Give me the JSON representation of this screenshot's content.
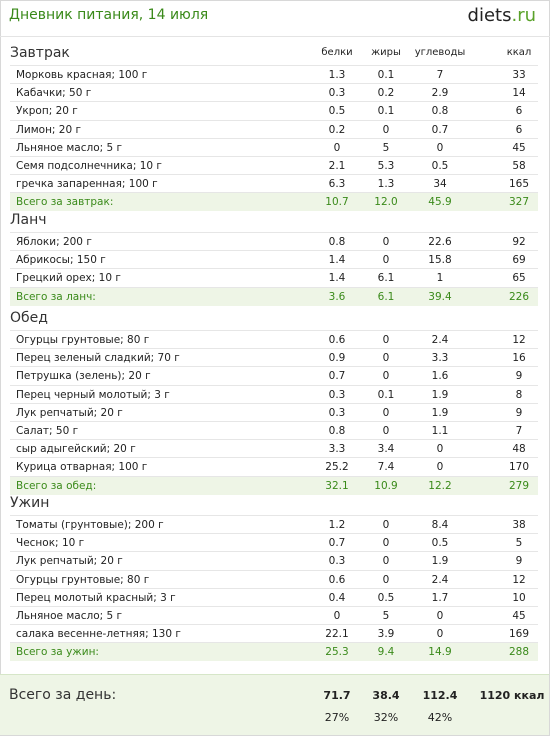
{
  "header": {
    "title": "Дневник питания, 14 июля",
    "logo_main": "diets",
    "logo_tld": ".ru"
  },
  "columns": {
    "protein": "белки",
    "fat": "жиры",
    "carbs": "углеводы",
    "kcal": "ккал"
  },
  "meals": [
    {
      "title": "Завтрак",
      "items": [
        [
          "Морковь красная; 100 г",
          "1.3",
          "0.1",
          "7",
          "33"
        ],
        [
          "Кабачки; 50 г",
          "0.3",
          "0.2",
          "2.9",
          "14"
        ],
        [
          "Укроп; 20 г",
          "0.5",
          "0.1",
          "0.8",
          "6"
        ],
        [
          "Лимон; 20 г",
          "0.2",
          "0",
          "0.7",
          "6"
        ],
        [
          "Льняное масло; 5 г",
          "0",
          "5",
          "0",
          "45"
        ],
        [
          "Семя подсолнечника; 10 г",
          "2.1",
          "5.3",
          "0.5",
          "58"
        ],
        [
          "гречка запаренная; 100 г",
          "6.3",
          "1.3",
          "34",
          "165"
        ]
      ],
      "total": [
        "Всего за завтрак:",
        "10.7",
        "12.0",
        "45.9",
        "327"
      ]
    },
    {
      "title": "Ланч",
      "items": [
        [
          "Яблоки; 200 г",
          "0.8",
          "0",
          "22.6",
          "92"
        ],
        [
          "Абрикосы; 150 г",
          "1.4",
          "0",
          "15.8",
          "69"
        ],
        [
          "Грецкий орех; 10 г",
          "1.4",
          "6.1",
          "1",
          "65"
        ]
      ],
      "total": [
        "Всего за ланч:",
        "3.6",
        "6.1",
        "39.4",
        "226"
      ]
    },
    {
      "title": "Обед",
      "items": [
        [
          "Огурцы грунтовые; 80 г",
          "0.6",
          "0",
          "2.4",
          "12"
        ],
        [
          "Перец зеленый сладкий; 70 г",
          "0.9",
          "0",
          "3.3",
          "16"
        ],
        [
          "Петрушка (зелень); 20 г",
          "0.7",
          "0",
          "1.6",
          "9"
        ],
        [
          "Перец черный молотый; 3 г",
          "0.3",
          "0.1",
          "1.9",
          "8"
        ],
        [
          "Лук репчатый; 20 г",
          "0.3",
          "0",
          "1.9",
          "9"
        ],
        [
          "Салат; 50 г",
          "0.8",
          "0",
          "1.1",
          "7"
        ],
        [
          "сыр адыгейский; 20 г",
          "3.3",
          "3.4",
          "0",
          "48"
        ],
        [
          "Курица отварная; 100 г",
          "25.2",
          "7.4",
          "0",
          "170"
        ]
      ],
      "total": [
        "Всего за обед:",
        "32.1",
        "10.9",
        "12.2",
        "279"
      ]
    },
    {
      "title": "Ужин",
      "items": [
        [
          "Томаты (грунтовые); 200 г",
          "1.2",
          "0",
          "8.4",
          "38"
        ],
        [
          "Чеснок; 10 г",
          "0.7",
          "0",
          "0.5",
          "5"
        ],
        [
          "Лук репчатый; 20 г",
          "0.3",
          "0",
          "1.9",
          "9"
        ],
        [
          "Огурцы грунтовые; 80 г",
          "0.6",
          "0",
          "2.4",
          "12"
        ],
        [
          "Перец молотый красный; 3 г",
          "0.4",
          "0.5",
          "1.7",
          "10"
        ],
        [
          "Льняное масло; 5 г",
          "0",
          "5",
          "0",
          "45"
        ],
        [
          "салака весенне-летняя; 130 г",
          "22.1",
          "3.9",
          "0",
          "169"
        ]
      ],
      "total": [
        "Всего за ужин:",
        "25.3",
        "9.4",
        "14.9",
        "288"
      ]
    }
  ],
  "day": {
    "label": "Всего за день:",
    "protein": "71.7",
    "fat": "38.4",
    "carbs": "112.4",
    "kcal": "1120 ккал",
    "protein_pct": "27%",
    "fat_pct": "32%",
    "carbs_pct": "42%"
  }
}
